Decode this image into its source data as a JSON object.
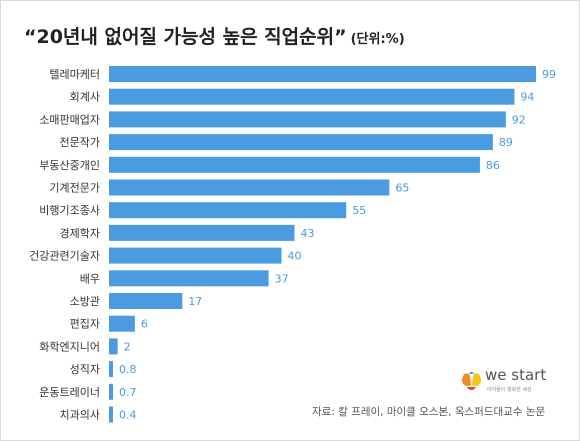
{
  "chart_data": {
    "type": "bar",
    "orientation": "horizontal",
    "title": "“20년내 없어질 가능성 높은 직업순위”",
    "unit_label": "(단위:%)",
    "categories": [
      "텔레마케터",
      "회계사",
      "소매판매업자",
      "전문작가",
      "부동산중개인",
      "기계전문가",
      "비행기조종사",
      "경제학자",
      "건강관련기술자",
      "배우",
      "소방관",
      "편집자",
      "화학엔지니어",
      "성직자",
      "운동트레이너",
      "치과의사"
    ],
    "values": [
      99,
      94,
      92,
      89,
      86,
      65,
      55,
      43,
      40,
      37,
      17,
      6,
      2,
      0.8,
      0.7,
      0.4
    ],
    "value_labels": [
      "99",
      "94",
      "92",
      "89",
      "86",
      "65",
      "55",
      "43",
      "40",
      "37",
      "17",
      "6",
      "2",
      "0.8",
      "0.7",
      "0.4"
    ],
    "xlim": [
      0,
      100
    ],
    "grid": false,
    "bar_color": "#4a9be0",
    "label_color": "#4a9be0"
  },
  "source": "자료: 칼 프레이, 마이클 오스본, 옥스퍼드대교수 논문",
  "logo": {
    "name": "we start",
    "tagline": "아이들이 행복한 세상",
    "icon": "hands-logo-icon"
  }
}
